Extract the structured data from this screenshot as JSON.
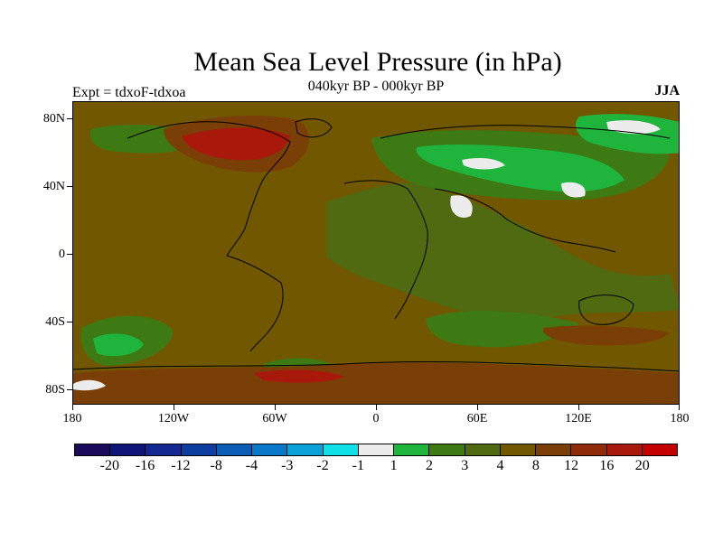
{
  "title": "Mean Sea Level Pressure (in hPa)",
  "subtitle": "040kyr BP - 000kyr BP",
  "left_label": "Expt = tdxoF-tdxoa",
  "right_label": "JJA",
  "map": {
    "lat_labels": [
      "80N",
      "40N",
      "0",
      "40S",
      "80S"
    ],
    "lon_labels": [
      "180",
      "120W",
      "60W",
      "0",
      "60E",
      "120E",
      "180"
    ],
    "colors": {
      "background": "#715800",
      "green": "#1fb43c",
      "olive": "#3d7a14",
      "dark_olive": "#4f6a10",
      "brown": "#7a3f06",
      "red": "#a8190c",
      "white": "#ececec",
      "coast": "#000000"
    }
  },
  "colorbar": {
    "colors": [
      "#1a0a5c",
      "#0f1478",
      "#102890",
      "#0c3ea0",
      "#0a5cb4",
      "#0a78c8",
      "#0aa0d8",
      "#10e0e8",
      "#ececec",
      "#1fb43c",
      "#3d7a14",
      "#4f6a10",
      "#715800",
      "#7a3f06",
      "#8f2a08",
      "#a8190c",
      "#c40000"
    ],
    "labels": [
      "-20",
      "-16",
      "-12",
      "-8",
      "-4",
      "-3",
      "-2",
      "-1",
      "1",
      "2",
      "3",
      "4",
      "8",
      "12",
      "16",
      "20"
    ]
  }
}
